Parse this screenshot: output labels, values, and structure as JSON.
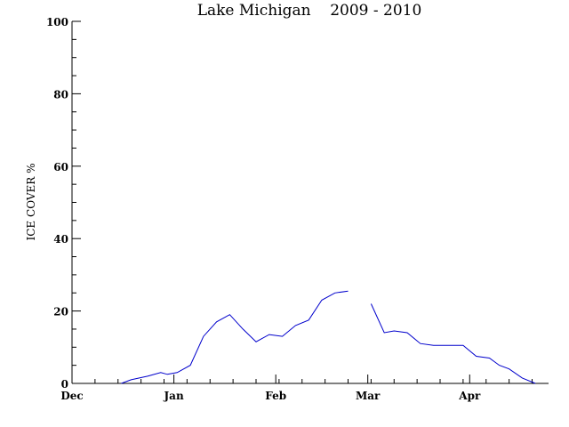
{
  "chart_data": {
    "type": "line",
    "title": "Lake Michigan    2009 - 2010",
    "ylabel": "ICE COVER %",
    "xlabel": "",
    "ylim": [
      0,
      100
    ],
    "y_ticks": [
      "0",
      "20",
      "40",
      "60",
      "80",
      "100"
    ],
    "x_ticks": [
      "Dec",
      "Jan",
      "Feb",
      "Mar",
      "Apr"
    ],
    "x_tick_days": [
      0,
      31,
      62,
      90,
      121
    ],
    "x_start": "Dec 1",
    "x_unit": "days",
    "line_color": "#0000cc",
    "grid": false,
    "series": [
      {
        "segments": [
          {
            "x": [
              15,
              18,
              23,
              27,
              29,
              32,
              36,
              40,
              44,
              48,
              52,
              56,
              60,
              64,
              68,
              72,
              76,
              80,
              84
            ],
            "y": [
              0,
              1,
              2,
              3,
              2.5,
              3,
              5,
              13,
              17,
              19,
              15,
              11.5,
              13.5,
              13,
              16,
              17.5,
              23,
              25,
              25.5
            ]
          },
          {
            "x": [
              91,
              95,
              98,
              102,
              106,
              110,
              114,
              119,
              123,
              127,
              130,
              133,
              137,
              141
            ],
            "y": [
              22,
              14,
              14.5,
              14,
              11,
              10.5,
              10.5,
              10.5,
              7.5,
              7,
              5,
              4,
              1.5,
              0
            ]
          }
        ]
      }
    ]
  }
}
